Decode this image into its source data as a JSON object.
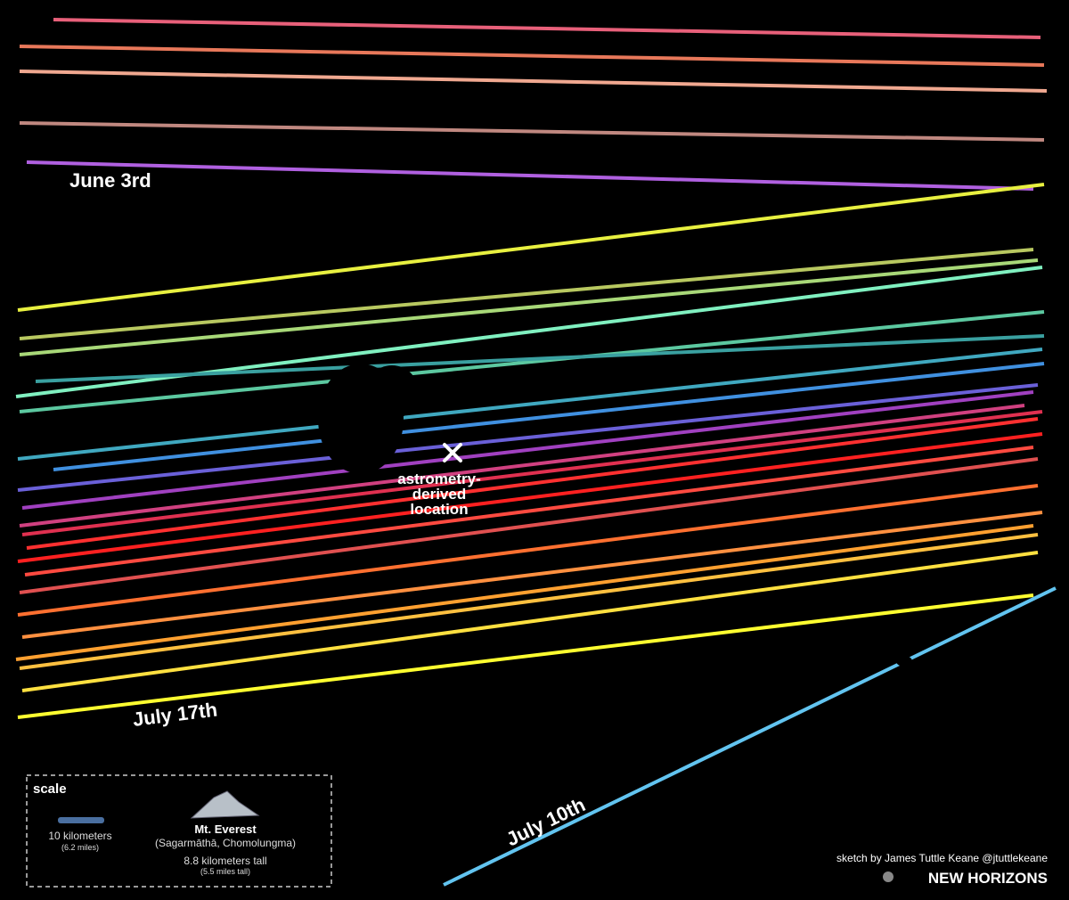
{
  "chord_labels": [
    "June 3rd",
    "July 17th",
    "July 10th"
  ],
  "location_label": [
    "astrometry-",
    "derived",
    "location"
  ],
  "scale": {
    "title": "scale",
    "bar_label": "10 kilometers",
    "bar_sublabel": "(6.2 miles)",
    "mountain_name": "Mt. Everest",
    "mountain_alt": "(Sagarmāthā, Chomolungma)",
    "mountain_height": "8.8 kilometers tall",
    "mountain_subheight": "(5.5 miles tall)"
  },
  "credit": "sketch by James Tuttle Keane @jtuttlekeane",
  "mission": "NEW HORIZONS"
}
